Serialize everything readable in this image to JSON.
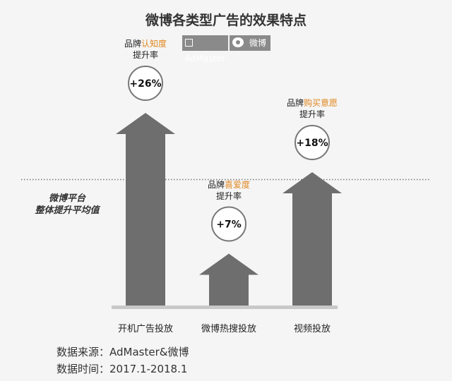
{
  "title": "微博各类型广告的效果特点",
  "logos": {
    "admaster": "AdMaster",
    "weibo": "微博"
  },
  "average_label": [
    "微博平台",
    "整体提升平均值"
  ],
  "chart_data": {
    "type": "bar",
    "bar_style": "arrow",
    "categories": [
      "开机广告投放",
      "微博热搜投放",
      "视频投放"
    ],
    "values": [
      26,
      7,
      18
    ],
    "value_labels": [
      "+26%",
      "+7%",
      "+18%"
    ],
    "metric_labels": [
      {
        "prefix": "品牌",
        "highlight": "认知度",
        "suffix": "提升率"
      },
      {
        "prefix": "品牌",
        "highlight": "喜爱度",
        "suffix": "提升率"
      },
      {
        "prefix": "品牌",
        "highlight": "购买意愿",
        "suffix": "提升率"
      }
    ],
    "reference_line": {
      "style": "dotted"
    },
    "colors": {
      "arrow": "#6e6e6e",
      "baseline": "#c8c8c8",
      "highlight": "#e0861e"
    }
  },
  "source": {
    "line1": "数据来源：AdMaster&微博",
    "line2": "数据时间：2017.1-2018.1"
  }
}
